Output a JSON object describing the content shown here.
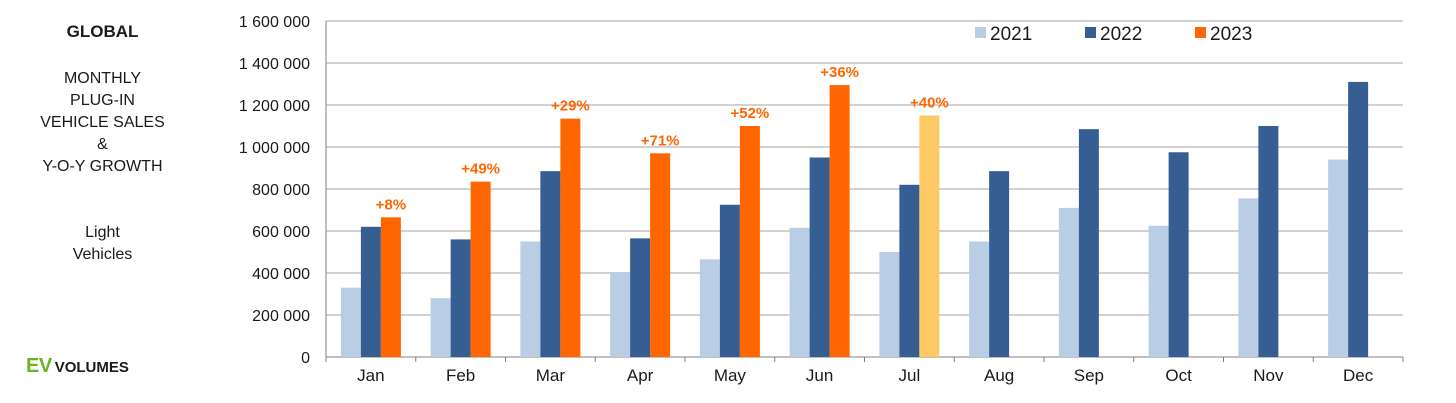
{
  "side": {
    "region": "GLOBAL",
    "subtitle_lines": [
      "MONTHLY",
      "PLUG-IN",
      "VEHICLE SALES",
      "&",
      "Y-O-Y GROWTH"
    ],
    "category_lines": [
      "Light",
      "Vehicles"
    ],
    "logo_ev": "EV",
    "logo_volumes": "VOLUMES"
  },
  "chart_data": {
    "type": "bar",
    "categories": [
      "Jan",
      "Feb",
      "Mar",
      "Apr",
      "May",
      "Jun",
      "Jul",
      "Aug",
      "Sep",
      "Oct",
      "Nov",
      "Dec"
    ],
    "ylim": [
      0,
      1600000
    ],
    "yticks": [
      0,
      200000,
      400000,
      600000,
      800000,
      1000000,
      1200000,
      1400000,
      1600000
    ],
    "ytick_labels": [
      "0",
      "200 000",
      "400 000",
      "600 000",
      "800 000",
      "1 000 000",
      "1 200 000",
      "1 400 000",
      "1 600 000"
    ],
    "grid": true,
    "legend_position": "top-right",
    "series": [
      {
        "name": "2021",
        "color": "#b9cde5",
        "values": [
          330000,
          280000,
          550000,
          405000,
          465000,
          615000,
          500000,
          550000,
          710000,
          625000,
          755000,
          940000
        ]
      },
      {
        "name": "2022",
        "color": "#375e93",
        "values": [
          620000,
          560000,
          885000,
          565000,
          725000,
          950000,
          820000,
          885000,
          1085000,
          975000,
          1100000,
          1310000
        ]
      },
      {
        "name": "2023",
        "color": "#ff6600",
        "highlight_color": "#ffc966",
        "highlight_index": 6,
        "values": [
          665000,
          835000,
          1135000,
          970000,
          1100000,
          1295000,
          1150000,
          null,
          null,
          null,
          null,
          null
        ]
      }
    ],
    "annotations": [
      "+8%",
      "+49%",
      "+29%",
      "+71%",
      "+52%",
      "+36%",
      "+40%",
      null,
      null,
      null,
      null,
      null
    ],
    "annotation_color": "#ff6600"
  }
}
